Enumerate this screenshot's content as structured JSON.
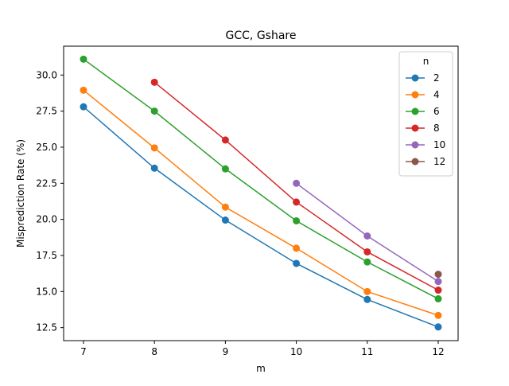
{
  "chart_data": {
    "type": "line",
    "title": "GCC, Gshare",
    "xlabel": "m",
    "ylabel": "Misprediction Rate (%)",
    "xlim": [
      6.72,
      12.28
    ],
    "ylim": [
      11.6,
      32.0
    ],
    "xticks": [
      7,
      8,
      9,
      10,
      11,
      12
    ],
    "yticks": [
      12.5,
      15.0,
      17.5,
      20.0,
      22.5,
      25.0,
      27.5,
      30.0
    ],
    "ytick_labels": [
      "12.5",
      "15.0",
      "17.5",
      "20.0",
      "22.5",
      "25.0",
      "27.5",
      "30.0"
    ],
    "grid": false,
    "legend": {
      "title": "n",
      "position": "top-right"
    },
    "series": [
      {
        "name": "2",
        "color": "#1f77b4",
        "x": [
          7,
          8,
          9,
          10,
          11,
          12
        ],
        "values": [
          27.8,
          23.55,
          19.95,
          16.95,
          14.45,
          12.55
        ]
      },
      {
        "name": "4",
        "color": "#ff7f0e",
        "x": [
          7,
          8,
          9,
          10,
          11,
          12
        ],
        "values": [
          28.95,
          24.95,
          20.85,
          18.0,
          15.0,
          13.35
        ]
      },
      {
        "name": "6",
        "color": "#2ca02c",
        "x": [
          7,
          8,
          9,
          10,
          11,
          12
        ],
        "values": [
          31.1,
          27.5,
          23.5,
          19.9,
          17.05,
          14.5
        ]
      },
      {
        "name": "8",
        "color": "#d62728",
        "x": [
          8,
          9,
          10,
          11,
          12
        ],
        "values": [
          29.5,
          25.5,
          21.2,
          17.75,
          15.1
        ]
      },
      {
        "name": "10",
        "color": "#9467bd",
        "x": [
          10,
          11,
          12
        ],
        "values": [
          22.5,
          18.85,
          15.7
        ]
      },
      {
        "name": "12",
        "color": "#8c564b",
        "x": [
          12
        ],
        "values": [
          16.2
        ]
      }
    ]
  }
}
